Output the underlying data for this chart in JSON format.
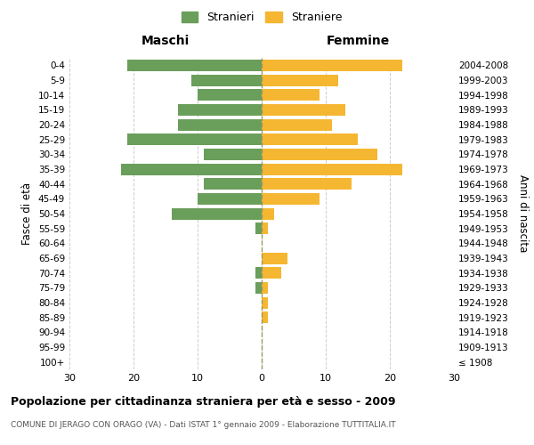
{
  "age_groups": [
    "100+",
    "95-99",
    "90-94",
    "85-89",
    "80-84",
    "75-79",
    "70-74",
    "65-69",
    "60-64",
    "55-59",
    "50-54",
    "45-49",
    "40-44",
    "35-39",
    "30-34",
    "25-29",
    "20-24",
    "15-19",
    "10-14",
    "5-9",
    "0-4"
  ],
  "birth_years": [
    "≤ 1908",
    "1909-1913",
    "1914-1918",
    "1919-1923",
    "1924-1928",
    "1929-1933",
    "1934-1938",
    "1939-1943",
    "1944-1948",
    "1949-1953",
    "1954-1958",
    "1959-1963",
    "1964-1968",
    "1969-1973",
    "1974-1978",
    "1979-1983",
    "1984-1988",
    "1989-1993",
    "1994-1998",
    "1999-2003",
    "2004-2008"
  ],
  "males": [
    0,
    0,
    0,
    0,
    0,
    1,
    1,
    0,
    0,
    1,
    14,
    10,
    9,
    22,
    9,
    21,
    13,
    13,
    10,
    11,
    21
  ],
  "females": [
    0,
    0,
    0,
    1,
    1,
    1,
    3,
    4,
    0,
    1,
    2,
    9,
    14,
    22,
    18,
    15,
    11,
    13,
    9,
    12,
    22
  ],
  "male_color": "#6a9e5b",
  "female_color": "#f5b731",
  "xlim": 30,
  "title": "Popolazione per cittadinanza straniera per età e sesso - 2009",
  "subtitle": "COMUNE DI JERAGO CON ORAGO (VA) - Dati ISTAT 1° gennaio 2009 - Elaborazione TUTTITALIA.IT",
  "ylabel_left": "Fasce di età",
  "ylabel_right": "Anni di nascita",
  "header_left": "Maschi",
  "header_right": "Femmine",
  "legend_male": "Stranieri",
  "legend_female": "Straniere",
  "background_color": "#ffffff",
  "grid_color": "#cccccc"
}
